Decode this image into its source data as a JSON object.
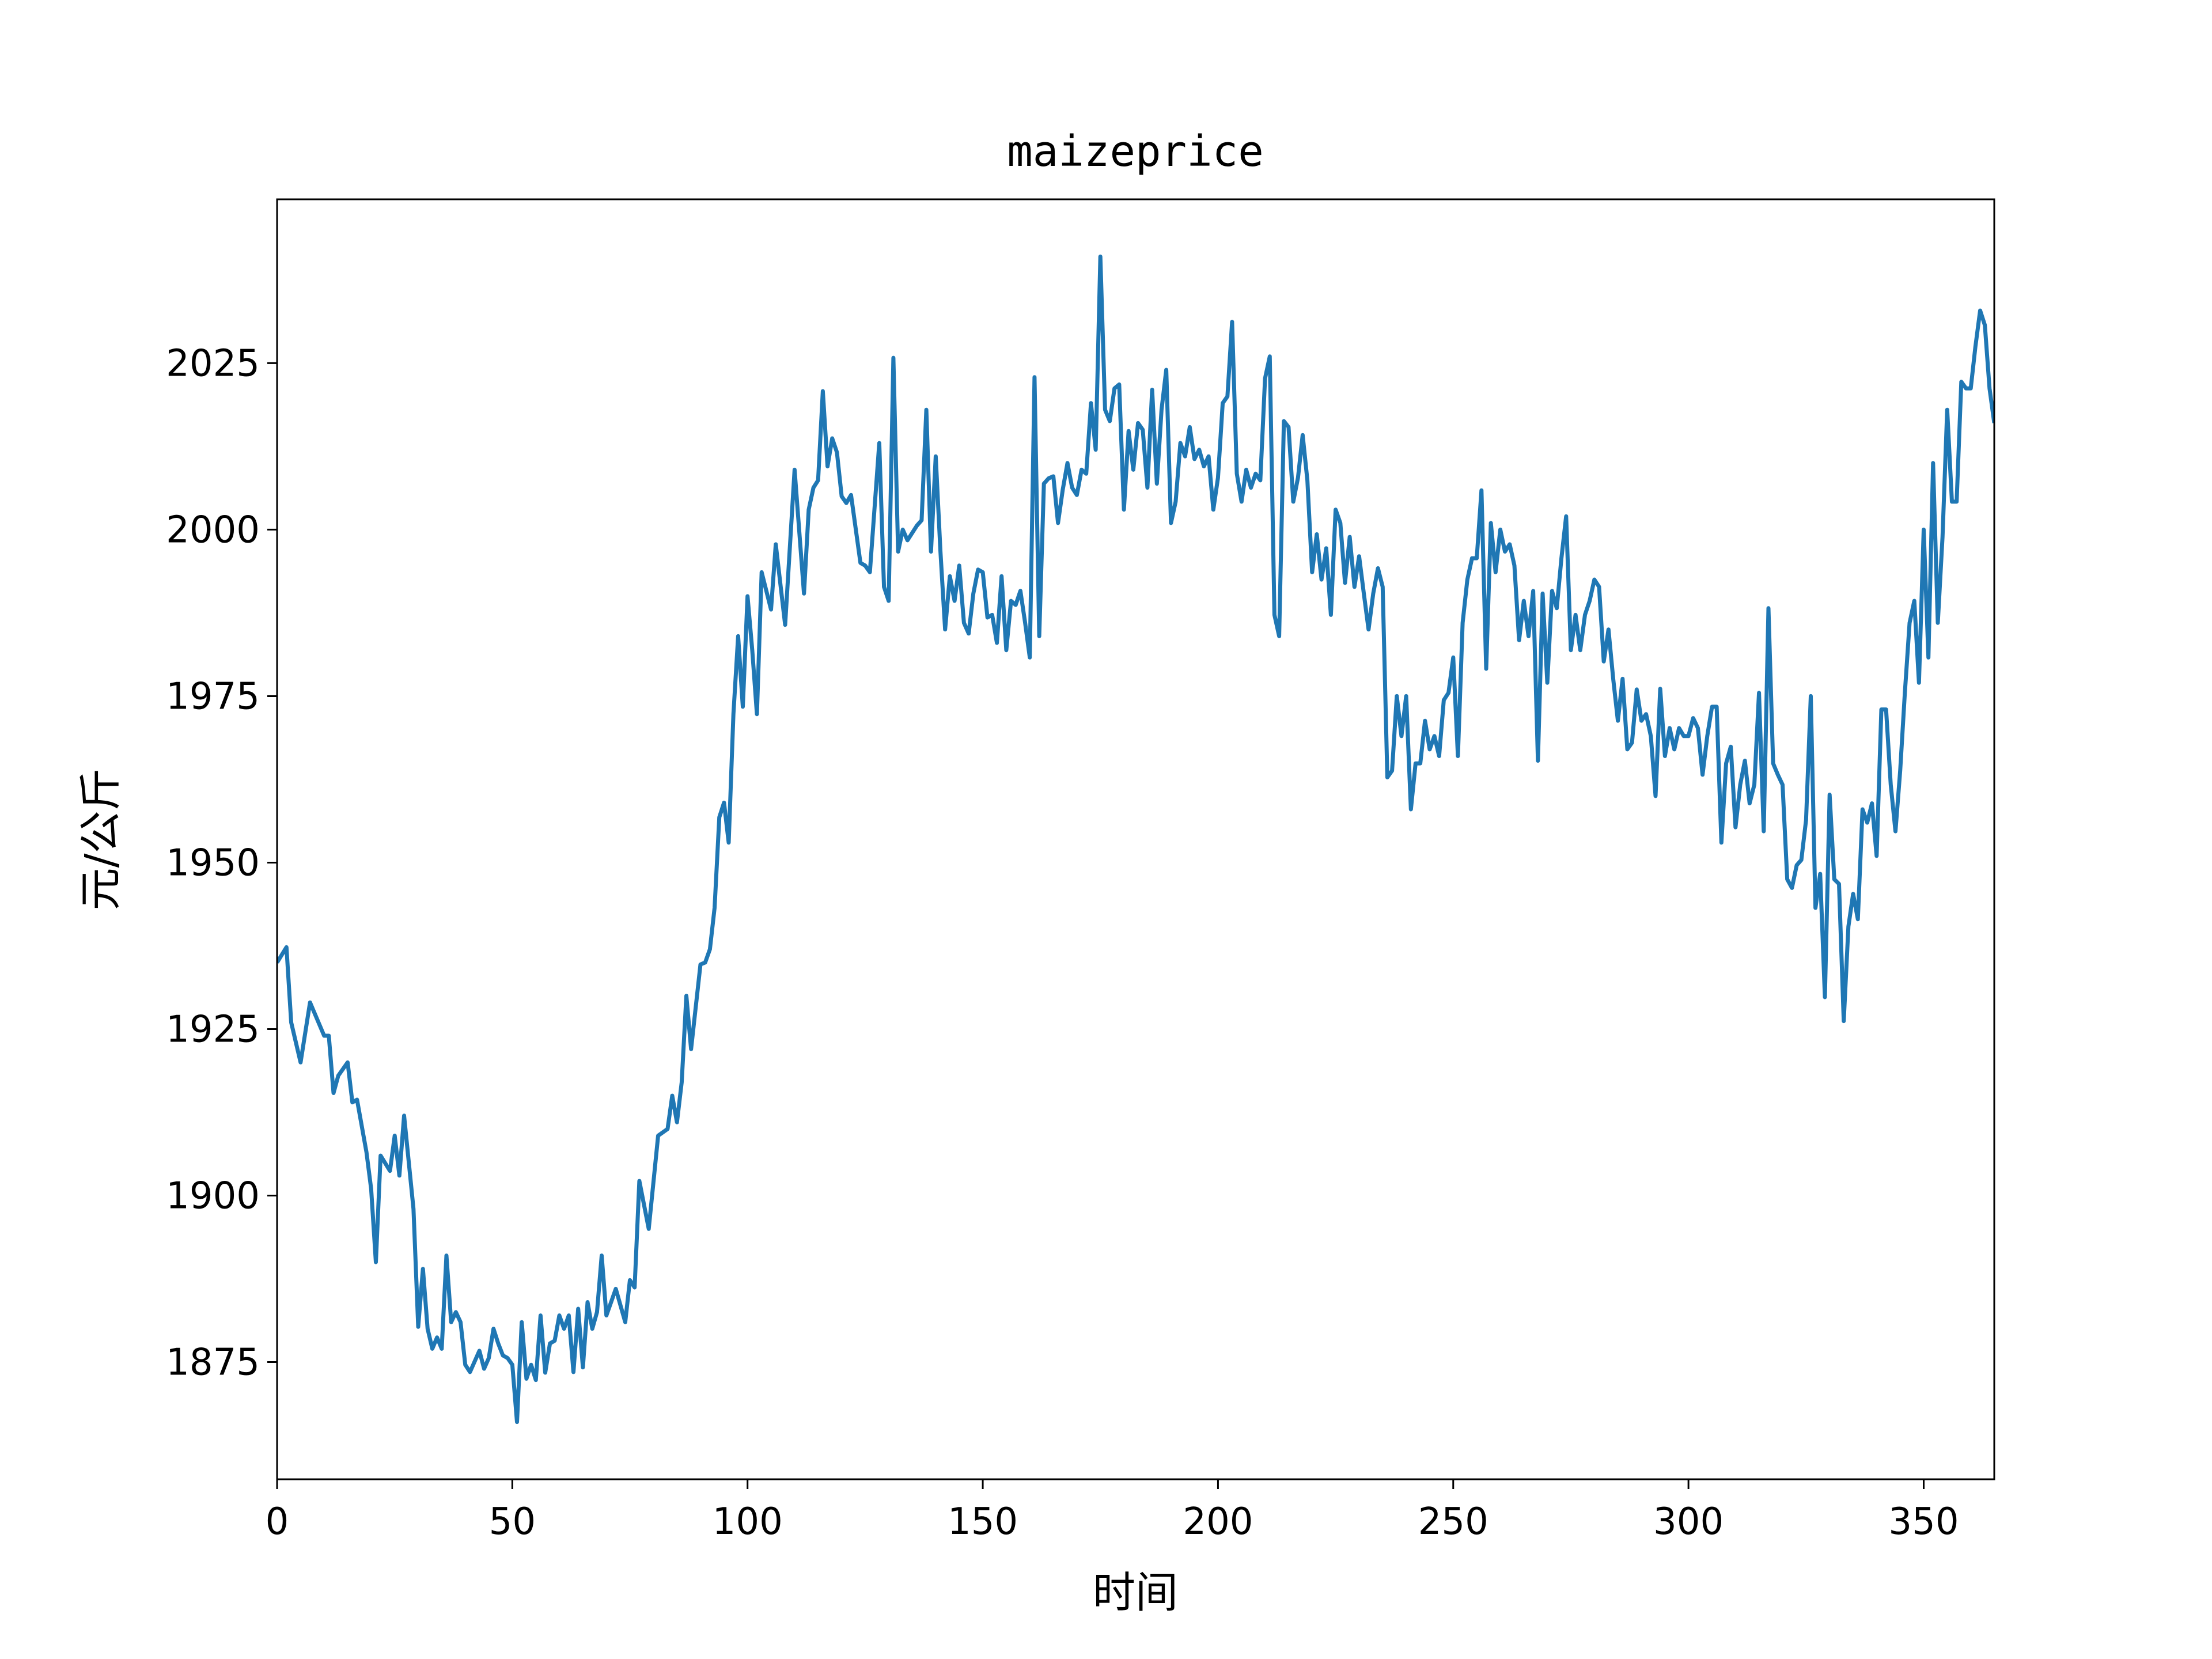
{
  "chart_data": {
    "type": "line",
    "title": "maizeprice",
    "x_label": "时间",
    "y_label": "元/公斤",
    "x": [
      0,
      2,
      3,
      5,
      7,
      10,
      11,
      12,
      13,
      15,
      16,
      17,
      19,
      20,
      21,
      22,
      24,
      25,
      26,
      27,
      29,
      30,
      31,
      32,
      33,
      34,
      35,
      36,
      37,
      38,
      39,
      40,
      41,
      43,
      44,
      45,
      46,
      47,
      48,
      49,
      50,
      51,
      52,
      53,
      54,
      55,
      56,
      57,
      58,
      59,
      60,
      61,
      62,
      63,
      64,
      65,
      66,
      67,
      68,
      69,
      70,
      72,
      74,
      75,
      76,
      77,
      79,
      81,
      83,
      84,
      85,
      86,
      87,
      88,
      90,
      91,
      92,
      93,
      94,
      95,
      96,
      97,
      98,
      99,
      100,
      101,
      102,
      103,
      105,
      106,
      108,
      110,
      112,
      113,
      114,
      115,
      116,
      117,
      118,
      119,
      120,
      121,
      122,
      124,
      125,
      126,
      128,
      129,
      130,
      131,
      132,
      133,
      134,
      136,
      137,
      138,
      139,
      140,
      141,
      142,
      143,
      144,
      145,
      146,
      147,
      148,
      149,
      150,
      151,
      152,
      153,
      154,
      155,
      156,
      157,
      158,
      159,
      160,
      161,
      162,
      163,
      164,
      165,
      166,
      167,
      168,
      169,
      170,
      171,
      172,
      173,
      174,
      175,
      176,
      177,
      178,
      179,
      180,
      181,
      182,
      183,
      184,
      185,
      186,
      187,
      188,
      189,
      190,
      191,
      192,
      193,
      194,
      195,
      196,
      197,
      198,
      199,
      200,
      201,
      202,
      203,
      204,
      205,
      206,
      207,
      208,
      209,
      210,
      211,
      212,
      213,
      214,
      215,
      216,
      217,
      218,
      219,
      220,
      221,
      222,
      223,
      224,
      225,
      226,
      227,
      228,
      229,
      230,
      231,
      232,
      233,
      234,
      235,
      236,
      237,
      238,
      239,
      240,
      241,
      242,
      243,
      244,
      245,
      246,
      247,
      248,
      249,
      250,
      251,
      252,
      253,
      254,
      255,
      256,
      257,
      258,
      259,
      260,
      261,
      262,
      263,
      264,
      265,
      266,
      267,
      268,
      269,
      270,
      271,
      272,
      273,
      274,
      275,
      276,
      277,
      278,
      279,
      280,
      281,
      282,
      283,
      284,
      285,
      286,
      287,
      288,
      289,
      290,
      291,
      292,
      293,
      294,
      295,
      296,
      297,
      298,
      299,
      300,
      301,
      302,
      303,
      304,
      305,
      306,
      307,
      308,
      309,
      310,
      311,
      312,
      313,
      314,
      315,
      316,
      317,
      318,
      319,
      320,
      321,
      322,
      323,
      324,
      325,
      326,
      327,
      328,
      329,
      330,
      331,
      332,
      333,
      334,
      335,
      336,
      337,
      338,
      339,
      340,
      341,
      342,
      343,
      344,
      345,
      346,
      347,
      348,
      349,
      350,
      351,
      352,
      353,
      354,
      355,
      356,
      357,
      358,
      359,
      360,
      361,
      362,
      363,
      364,
      365
    ],
    "series": [
      {
        "name": "maizeprice",
        "color": "#1f77b4",
        "values": [
          1935,
          1937.3,
          1926,
          1920,
          1929,
          1924,
          1924,
          1915.4,
          1918,
          1920,
          1914,
          1914.4,
          1906.5,
          1901,
          1890,
          1906,
          1903.7,
          1909,
          1903,
          1912,
          1898,
          1880.3,
          1889,
          1880,
          1877,
          1878.7,
          1877,
          1891,
          1881,
          1882.5,
          1881,
          1874.6,
          1873.5,
          1876.7,
          1874,
          1875.6,
          1880,
          1877.8,
          1876,
          1875.6,
          1874.6,
          1866,
          1881,
          1872.5,
          1874.6,
          1872.3,
          1882,
          1873.4,
          1877.8,
          1878.2,
          1882,
          1880,
          1882,
          1873.5,
          1883,
          1874.2,
          1884,
          1880,
          1882.5,
          1891,
          1882,
          1886,
          1881,
          1887.3,
          1886.2,
          1902.2,
          1895,
          1909,
          1910,
          1915,
          1911,
          1917,
          1930,
          1922,
          1934.7,
          1935,
          1937,
          1943.2,
          1956.8,
          1959,
          1953,
          1972.3,
          1984,
          1973.4,
          1990,
          1981.9,
          1972.3,
          1993.6,
          1988,
          1997.8,
          1985.7,
          2009,
          1990.4,
          2003,
          2006.3,
          2007.4,
          2020.8,
          2009.5,
          2013.7,
          2011.6,
          2005,
          2004,
          2005.2,
          1995,
          1994.6,
          1993.6,
          2013,
          1991.4,
          1989.3,
          2025.8,
          1996.7,
          2000,
          1998.4,
          2000.6,
          2001.4,
          2018,
          1996.7,
          2011,
          1996.7,
          1985,
          1993,
          1989.3,
          1994.6,
          1986,
          1984.4,
          1990.4,
          1994,
          1993.6,
          1986.8,
          1987.2,
          1983,
          1993,
          1981.9,
          1989.3,
          1988.7,
          1990.8,
          1986,
          1980.8,
          2022.9,
          1984,
          2006.9,
          2007.7,
          2008,
          2001,
          2006,
          2010,
          2006.3,
          2005.2,
          2009,
          2008.4,
          2019,
          2012,
          2041,
          2018,
          2016.3,
          2021.2,
          2021.8,
          2003,
          2014.8,
          2009,
          2016,
          2015,
          2006.3,
          2021,
          2006.9,
          2018,
          2024,
          2001,
          2004.2,
          2013,
          2011,
          2015.4,
          2010.6,
          2012,
          2009.5,
          2011,
          2003,
          2007.8,
          2019,
          2020,
          2031.2,
          2008.4,
          2004.2,
          2009,
          2006.3,
          2008.4,
          2007.4,
          2022.7,
          2026,
          1987.2,
          1984,
          2016.3,
          2015.4,
          2004.2,
          2007.8,
          2014.2,
          2007.4,
          1993.6,
          1999.3,
          1992.5,
          1997.2,
          1987.2,
          2003,
          2001,
          1992,
          1998.9,
          1991.4,
          1996,
          1990.4,
          1985,
          1990.4,
          1994.2,
          1991.4,
          1962.8,
          1963.8,
          1975,
          1969,
          1975,
          1958,
          1964.9,
          1964.9,
          1971.3,
          1967,
          1969,
          1966,
          1974.4,
          1975.5,
          1980.8,
          1966,
          1986,
          1992.5,
          1995.7,
          1995.7,
          2005.9,
          1979.1,
          2001,
          1993.6,
          2000,
          1996.7,
          1997.8,
          1994.6,
          1983.4,
          1989.3,
          1984,
          1990.8,
          1965.3,
          1990.4,
          1977,
          1990.8,
          1988.2,
          1995.7,
          2002,
          1981.9,
          1987.2,
          1981.9,
          1987.2,
          1989.3,
          1992.5,
          1991.4,
          1980.2,
          1985,
          1977.6,
          1971.3,
          1977.6,
          1967,
          1968,
          1976,
          1971.3,
          1972.3,
          1969,
          1960,
          1976.1,
          1966,
          1970.2,
          1967,
          1970.2,
          1969,
          1969,
          1971.7,
          1970.2,
          1963.2,
          1969,
          1973.4,
          1973.4,
          1953,
          1964.9,
          1967.4,
          1955.3,
          1961.7,
          1965.3,
          1958.9,
          1961.7,
          1975.5,
          1954.7,
          1988.2,
          1964.9,
          1963.2,
          1961.7,
          1947.5,
          1946.2,
          1949.6,
          1950.4,
          1956.4,
          1975,
          1943.2,
          1948.3,
          1929.8,
          1960.2,
          1947.5,
          1946.8,
          1926.2,
          1940.4,
          1945.3,
          1941.5,
          1958,
          1956,
          1958.9,
          1951,
          1973,
          1973,
          1961.7,
          1954.7,
          1963.8,
          1975.5,
          1986,
          1989.3,
          1977,
          2000,
          1980.8,
          2010,
          1986,
          1998.9,
          2018,
          2004.2,
          2004.2,
          2022.2,
          2021.2,
          2021.2,
          2027.5,
          2032.9,
          2030.7,
          2021.2,
          2016
        ]
      }
    ],
    "xlim": [
      0,
      365
    ],
    "ylim": [
      1857.4,
      2049.6
    ],
    "xticks": [
      0,
      50,
      100,
      150,
      200,
      250,
      300,
      350
    ],
    "yticks": [
      1875,
      1900,
      1925,
      1950,
      1975,
      2000,
      2025
    ],
    "grid": false
  }
}
